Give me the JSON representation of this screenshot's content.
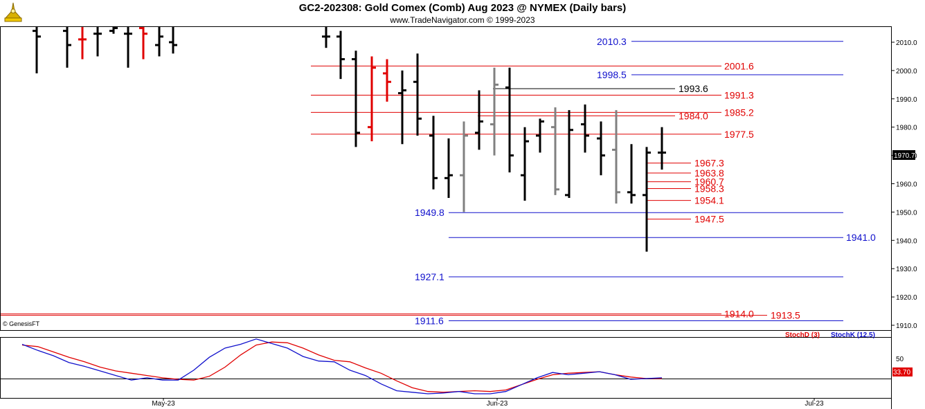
{
  "header": {
    "title": "GC2-202308:  Gold Comex (Comb) Aug 2023 @ NYMEX  (Daily bars)",
    "subtitle": "www.TradeNavigator.com © 1999-2023",
    "copyright": "© GenesisFT"
  },
  "colors": {
    "up_bar": "#000000",
    "down_bar": "#e00000",
    "gray_bar": "#808080",
    "blue_level": "#1010cc",
    "red_level": "#e00000",
    "stoch_d": "#e00000",
    "stoch_k": "#1010cc"
  },
  "chart_data": [
    {
      "type": "ohlc",
      "ylim": [
        1905,
        2017
      ],
      "y_ticks": [
        "2010.0",
        "2000.0",
        "1990.0",
        "1980.0",
        "1970.0",
        "1960.0",
        "1950.0",
        "1940.0",
        "1930.0",
        "1920.0",
        "1910.0"
      ],
      "last_price": "1970.7",
      "x_labels": [
        "May-23",
        "Jun-23",
        "Jul-23"
      ],
      "bars": [
        {
          "h": 2018,
          "l": 1999,
          "o": 2014,
          "c": 2012,
          "color": "black"
        },
        {
          "h": 2018,
          "l": 2001,
          "o": 2014,
          "c": 2009,
          "color": "black"
        },
        {
          "h": 2016,
          "l": 2004,
          "o": 2011,
          "c": 2011,
          "color": "red"
        },
        {
          "h": 2017,
          "l": 2005,
          "o": 2013,
          "c": 2013,
          "color": "black"
        },
        {
          "h": 2018,
          "l": 2013,
          "o": 2014,
          "c": 2015,
          "color": "black"
        },
        {
          "h": 2018,
          "l": 2001,
          "o": 2013,
          "c": 2013,
          "color": "black"
        },
        {
          "h": 2016,
          "l": 2004,
          "o": 2015,
          "c": 2013,
          "color": "red"
        },
        {
          "h": 2018,
          "l": 2005,
          "o": 2009,
          "c": 2012,
          "color": "black"
        },
        {
          "h": 2018,
          "l": 2006,
          "o": 2010,
          "c": 2009,
          "color": "black"
        },
        {
          "h": 2016,
          "l": 2008,
          "o": 2012,
          "c": 2012,
          "color": "black"
        },
        {
          "h": 2014,
          "l": 1997,
          "o": 2012,
          "c": 2004,
          "color": "black"
        },
        {
          "h": 2007,
          "l": 1973,
          "o": 2004,
          "c": 1978,
          "color": "black"
        },
        {
          "h": 2005,
          "l": 1975,
          "o": 1980,
          "c": 2001,
          "color": "red"
        },
        {
          "h": 2004,
          "l": 1989,
          "o": 1999,
          "c": 1996,
          "color": "red"
        },
        {
          "h": 2000,
          "l": 1974,
          "o": 1992,
          "c": 1993,
          "color": "black"
        },
        {
          "h": 2006,
          "l": 1977,
          "o": 1996,
          "c": 1983,
          "color": "black"
        },
        {
          "h": 1984,
          "l": 1958,
          "o": 1977,
          "c": 1962,
          "color": "black"
        },
        {
          "h": 1976,
          "l": 1955,
          "o": 1962,
          "c": 1963,
          "color": "black"
        },
        {
          "h": 1982,
          "l": 1950,
          "o": 1963,
          "c": 1977,
          "color": "gray"
        },
        {
          "h": 1993,
          "l": 1972,
          "o": 1978,
          "c": 1982,
          "color": "black"
        },
        {
          "h": 2001,
          "l": 1970,
          "o": 1981,
          "c": 1995,
          "color": "gray"
        },
        {
          "h": 2001,
          "l": 1964,
          "o": 1994,
          "c": 1970,
          "color": "black"
        },
        {
          "h": 1980,
          "l": 1954,
          "o": 1963,
          "c": 1975,
          "color": "black"
        },
        {
          "h": 1983,
          "l": 1971,
          "o": 1977,
          "c": 1982,
          "color": "black"
        },
        {
          "h": 1987,
          "l": 1956,
          "o": 1980,
          "c": 1958,
          "color": "gray"
        },
        {
          "h": 1986,
          "l": 1955,
          "o": 1956,
          "c": 1979,
          "color": "black"
        },
        {
          "h": 1988,
          "l": 1971,
          "o": 1981,
          "c": 1977,
          "color": "black"
        },
        {
          "h": 1982,
          "l": 1963,
          "o": 1976,
          "c": 1970,
          "color": "black"
        },
        {
          "h": 1986,
          "l": 1953,
          "o": 1972,
          "c": 1957,
          "color": "gray"
        },
        {
          "h": 1974,
          "l": 1953,
          "o": 1957,
          "c": 1956,
          "color": "black"
        },
        {
          "h": 1973,
          "l": 1936,
          "o": 1956,
          "c": 1971,
          "color": "black"
        },
        {
          "h": 1980,
          "l": 1965,
          "o": 1971,
          "c": 1971,
          "color": "black"
        }
      ],
      "levels": [
        {
          "value": 2010.3,
          "label": "2010.3",
          "color": "blue",
          "span": "wide",
          "label_pos": "left"
        },
        {
          "value": 2001.6,
          "label": "2001.6",
          "color": "red",
          "span": "wide",
          "label_pos": "right"
        },
        {
          "value": 1998.5,
          "label": "1998.5",
          "color": "blue",
          "span": "wide",
          "label_pos": "left"
        },
        {
          "value": 1993.6,
          "label": "1993.6",
          "color": "black",
          "span": "short",
          "label_pos": "right"
        },
        {
          "value": 1991.3,
          "label": "1991.3",
          "color": "red",
          "span": "wide",
          "label_pos": "right"
        },
        {
          "value": 1985.2,
          "label": "1985.2",
          "color": "red",
          "span": "wide",
          "label_pos": "right"
        },
        {
          "value": 1984.0,
          "label": "1984.0",
          "color": "red",
          "span": "short",
          "label_pos": "right"
        },
        {
          "value": 1977.5,
          "label": "1977.5",
          "color": "red",
          "span": "wide",
          "label_pos": "right"
        },
        {
          "value": 1967.3,
          "label": "1967.3",
          "color": "red",
          "span": "tiny",
          "label_pos": "right"
        },
        {
          "value": 1963.8,
          "label": "1963.8",
          "color": "red",
          "span": "tiny",
          "label_pos": "right"
        },
        {
          "value": 1960.7,
          "label": "1960.7",
          "color": "red",
          "span": "tiny",
          "label_pos": "right"
        },
        {
          "value": 1958.3,
          "label": "1958.3",
          "color": "red",
          "span": "tiny",
          "label_pos": "right"
        },
        {
          "value": 1954.1,
          "label": "1954.1",
          "color": "red",
          "span": "tiny",
          "label_pos": "right"
        },
        {
          "value": 1949.8,
          "label": "1949.8",
          "color": "blue",
          "span": "wide",
          "label_pos": "left"
        },
        {
          "value": 1947.5,
          "label": "1947.5",
          "color": "red",
          "span": "tiny",
          "label_pos": "right"
        },
        {
          "value": 1941.0,
          "label": "1941.0",
          "color": "blue",
          "span": "wide",
          "label_pos": "right"
        },
        {
          "value": 1927.1,
          "label": "1927.1",
          "color": "blue",
          "span": "wide",
          "label_pos": "left"
        },
        {
          "value": 1914.0,
          "label": "1914.0",
          "color": "red",
          "span": "full",
          "label_pos": "right"
        },
        {
          "value": 1913.5,
          "label": "1913.5",
          "color": "red",
          "span": "full",
          "label_pos": "right2"
        },
        {
          "value": 1911.6,
          "label": "1911.6",
          "color": "blue",
          "span": "wide",
          "label_pos": "left"
        }
      ]
    },
    {
      "type": "line",
      "ylim": [
        0,
        100
      ],
      "y_ticks": [
        "50"
      ],
      "last_value": "33.70",
      "series": [
        {
          "name": "StochD (3)",
          "values": [
            77,
            75,
            68,
            61,
            55,
            48,
            43,
            40,
            37,
            34,
            32,
            31,
            36,
            48,
            64,
            77,
            81,
            80,
            73,
            64,
            57,
            55,
            47,
            40,
            30,
            21,
            16,
            15,
            16,
            17,
            16,
            18,
            25,
            32,
            38,
            40,
            41,
            42,
            38,
            35,
            33,
            33
          ]
        },
        {
          "name": "StochK (12,5)",
          "values": [
            78,
            70,
            63,
            54,
            49,
            43,
            37,
            31,
            34,
            31,
            31,
            44,
            61,
            73,
            78,
            85,
            79,
            73,
            62,
            56,
            55,
            44,
            37,
            26,
            17,
            15,
            13,
            14,
            16,
            13,
            13,
            16,
            25,
            34,
            41,
            38,
            40,
            42,
            38,
            32,
            33,
            34
          ]
        }
      ]
    }
  ]
}
